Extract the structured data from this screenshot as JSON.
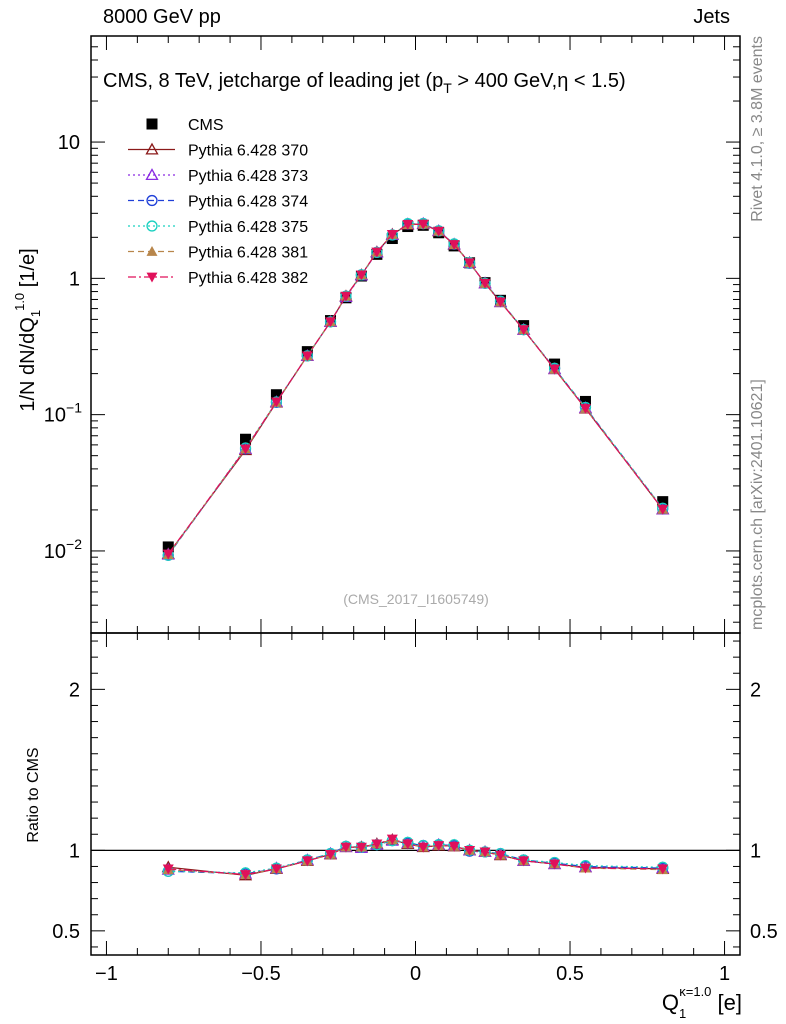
{
  "header": {
    "left": "8000 GeV pp",
    "right": "Jets"
  },
  "side_labels": {
    "rivet": "Rivet 4.1.0, ≥ 3.8M events",
    "mcplots": "mcplots.cern.ch [arXiv:2401.10621]"
  },
  "watermark": "(CMS_2017_I1605749)",
  "colors": {
    "cms": "#000000",
    "s370": "#8b1a1a",
    "s373": "#8a2be2",
    "s374": "#1f3fd8",
    "s375": "#19d0c0",
    "s381": "#b8864b",
    "s382": "#e0105a"
  },
  "chart_data": [
    {
      "type": "line",
      "panel": "main",
      "title": "CMS, 8 TeV, jetcharge of leading jet (p_T > 400 GeV,η < 1.5)",
      "title_parts": {
        "a": "CMS, 8 TeV, jetcharge of leading jet (p",
        "sub": "T",
        "b": " > 400 GeV,η < 1.5)"
      },
      "ylabel_parts": {
        "a": "1/N dN/dQ",
        "sub": "1",
        "sup": "1.0",
        "b": " [1/e]"
      },
      "yscale": "log",
      "xlim": [
        -1.05,
        1.05
      ],
      "ylim": [
        0.0025,
        60
      ],
      "ytick_labels": [
        {
          "value": 0.01,
          "base": "10",
          "exp": "−2"
        },
        {
          "value": 0.1,
          "base": "10",
          "exp": "−1"
        },
        {
          "value": 1,
          "base": "1",
          "exp": ""
        },
        {
          "value": 10,
          "base": "10",
          "exp": ""
        }
      ],
      "x": [
        -0.8,
        -0.55,
        -0.45,
        -0.35,
        -0.275,
        -0.225,
        -0.175,
        -0.125,
        -0.075,
        -0.025,
        0.025,
        0.075,
        0.125,
        0.175,
        0.225,
        0.275,
        0.35,
        0.45,
        0.55,
        0.8
      ],
      "legend_position": "top-left",
      "series": [
        {
          "name": "CMS",
          "key": "cms",
          "marker": "square",
          "line": "none",
          "values": [
            0.0107,
            0.066,
            0.14,
            0.29,
            0.49,
            0.72,
            1.04,
            1.5,
            1.96,
            2.4,
            2.45,
            2.16,
            1.73,
            1.3,
            0.93,
            0.69,
            0.45,
            0.235,
            0.125,
            0.023
          ]
        },
        {
          "name": "Pythia 6.428 370",
          "key": "s370",
          "marker": "triangle-open",
          "line": "solid",
          "values": [
            0.0095,
            0.055,
            0.123,
            0.27,
            0.48,
            0.74,
            1.06,
            1.56,
            2.1,
            2.48,
            2.5,
            2.22,
            1.77,
            1.3,
            0.92,
            0.67,
            0.42,
            0.216,
            0.111,
            0.0202
          ]
        },
        {
          "name": "Pythia 6.428 373",
          "key": "s373",
          "marker": "triangle-open",
          "line": "dotted",
          "values": [
            0.0094,
            0.056,
            0.124,
            0.27,
            0.48,
            0.73,
            1.05,
            1.55,
            2.08,
            2.5,
            2.52,
            2.23,
            1.78,
            1.3,
            0.92,
            0.67,
            0.42,
            0.216,
            0.112,
            0.0202
          ]
        },
        {
          "name": "Pythia 6.428 374",
          "key": "s374",
          "marker": "circle-open",
          "line": "dashed",
          "values": [
            0.0093,
            0.056,
            0.123,
            0.27,
            0.48,
            0.74,
            1.06,
            1.55,
            2.08,
            2.51,
            2.52,
            2.23,
            1.78,
            1.29,
            0.92,
            0.68,
            0.42,
            0.218,
            0.113,
            0.0204
          ]
        },
        {
          "name": "Pythia 6.428 375",
          "key": "s375",
          "marker": "circle-open",
          "line": "dotted",
          "values": [
            0.0093,
            0.057,
            0.124,
            0.27,
            0.48,
            0.74,
            1.06,
            1.55,
            2.08,
            2.52,
            2.52,
            2.23,
            1.79,
            1.3,
            0.92,
            0.68,
            0.42,
            0.219,
            0.113,
            0.0206
          ]
        },
        {
          "name": "Pythia 6.428 381",
          "key": "s381",
          "marker": "triangle-filled",
          "line": "dashed",
          "values": [
            0.0094,
            0.056,
            0.123,
            0.27,
            0.48,
            0.74,
            1.06,
            1.56,
            2.1,
            2.48,
            2.5,
            2.22,
            1.77,
            1.3,
            0.92,
            0.67,
            0.42,
            0.215,
            0.111,
            0.0202
          ]
        },
        {
          "name": "Pythia 6.428 382",
          "key": "s382",
          "marker": "triangle-down-filled",
          "line": "dashdot",
          "values": [
            0.0095,
            0.056,
            0.124,
            0.27,
            0.48,
            0.74,
            1.06,
            1.56,
            2.1,
            2.49,
            2.5,
            2.22,
            1.77,
            1.3,
            0.92,
            0.67,
            0.42,
            0.216,
            0.111,
            0.0202
          ]
        }
      ]
    },
    {
      "type": "line",
      "panel": "ratio",
      "ylabel": "Ratio to CMS",
      "ylim": [
        0.35,
        2.35
      ],
      "yticks": [
        0.5,
        1,
        2
      ],
      "ytick_labels": [
        "0.5",
        "1",
        "2"
      ],
      "xticks": [
        -1,
        -0.5,
        0,
        0.5,
        1
      ],
      "xtick_labels": [
        "−1",
        "−0.5",
        "0",
        "0.5",
        "1"
      ],
      "xlabel_parts": {
        "a": "Q",
        "sub": "1",
        "sup": "κ=1.0",
        "b": " [e]"
      },
      "reference_line": 1,
      "x": [
        -0.8,
        -0.55,
        -0.45,
        -0.35,
        -0.275,
        -0.225,
        -0.175,
        -0.125,
        -0.075,
        -0.025,
        0.025,
        0.075,
        0.125,
        0.175,
        0.225,
        0.275,
        0.35,
        0.45,
        0.55,
        0.8
      ],
      "series": [
        {
          "name": "Pythia 6.428 370",
          "key": "s370",
          "marker": "triangle-open",
          "line": "solid",
          "values": [
            0.895,
            0.845,
            0.885,
            0.935,
            0.975,
            1.02,
            1.02,
            1.04,
            1.065,
            1.04,
            1.02,
            1.03,
            1.025,
            1.0,
            0.99,
            0.97,
            0.935,
            0.915,
            0.895,
            0.885
          ]
        },
        {
          "name": "Pythia 6.428 373",
          "key": "s373",
          "marker": "triangle-open",
          "line": "dotted",
          "values": [
            0.88,
            0.855,
            0.89,
            0.94,
            0.98,
            1.02,
            1.015,
            1.035,
            1.06,
            1.045,
            1.025,
            1.035,
            1.03,
            1.0,
            0.99,
            0.975,
            0.935,
            0.915,
            0.895,
            0.89
          ]
        },
        {
          "name": "Pythia 6.428 374",
          "key": "s374",
          "marker": "circle-open",
          "line": "dashed",
          "values": [
            0.87,
            0.855,
            0.885,
            0.94,
            0.98,
            1.025,
            1.02,
            1.035,
            1.06,
            1.045,
            1.03,
            1.035,
            1.03,
            0.995,
            0.99,
            0.98,
            0.94,
            0.92,
            0.9,
            0.89
          ]
        },
        {
          "name": "Pythia 6.428 375",
          "key": "s375",
          "marker": "circle-open",
          "line": "dotted",
          "values": [
            0.87,
            0.86,
            0.89,
            0.94,
            0.98,
            1.025,
            1.02,
            1.035,
            1.06,
            1.05,
            1.03,
            1.035,
            1.035,
            1.0,
            0.99,
            0.98,
            0.94,
            0.925,
            0.905,
            0.895
          ]
        },
        {
          "name": "Pythia 6.428 381",
          "key": "s381",
          "marker": "triangle-filled",
          "line": "dashed",
          "values": [
            0.88,
            0.85,
            0.885,
            0.935,
            0.975,
            1.02,
            1.02,
            1.04,
            1.065,
            1.04,
            1.02,
            1.03,
            1.025,
            1.0,
            0.99,
            0.97,
            0.935,
            0.915,
            0.89,
            0.88
          ]
        },
        {
          "name": "Pythia 6.428 382",
          "key": "s382",
          "marker": "triangle-down-filled",
          "line": "dashdot",
          "values": [
            0.885,
            0.85,
            0.885,
            0.935,
            0.975,
            1.02,
            1.02,
            1.04,
            1.07,
            1.04,
            1.02,
            1.03,
            1.025,
            1.0,
            0.99,
            0.97,
            0.935,
            0.915,
            0.89,
            0.885
          ]
        }
      ]
    }
  ]
}
